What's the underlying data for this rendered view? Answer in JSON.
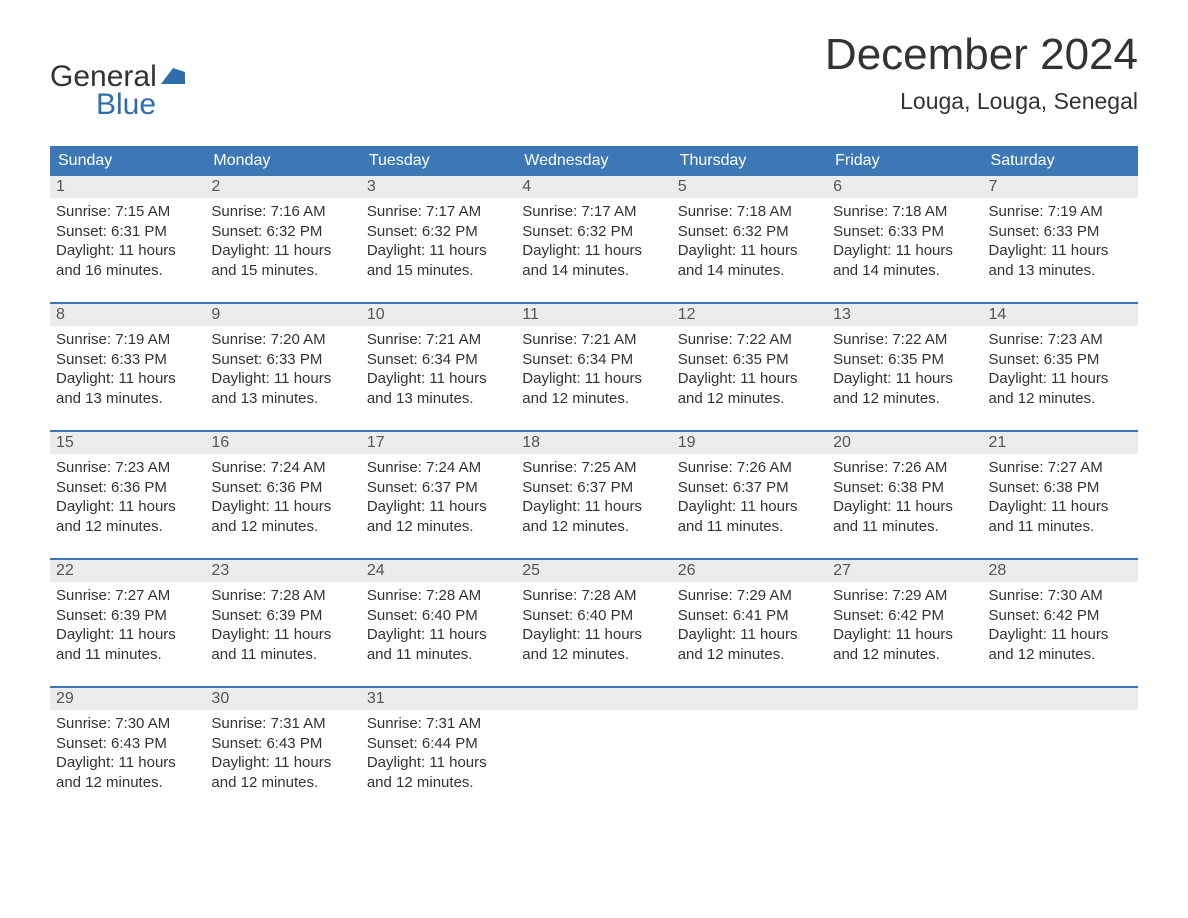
{
  "header": {
    "logo_line1": "General",
    "logo_line2": "Blue",
    "title": "December 2024",
    "subtitle": "Louga, Louga, Senegal"
  },
  "styling": {
    "header_bg": "#3b78b5",
    "header_text": "#ffffff",
    "daynum_bg": "#ececec",
    "week_border": "#3b78b5",
    "body_bg": "#ffffff",
    "text_color": "#333333",
    "logo_blue": "#2e6fab",
    "title_fontsize": 44,
    "subtitle_fontsize": 23,
    "dayheader_fontsize": 16,
    "body_fontsize": 15
  },
  "day_labels": [
    "Sunday",
    "Monday",
    "Tuesday",
    "Wednesday",
    "Thursday",
    "Friday",
    "Saturday"
  ],
  "weeks": [
    [
      {
        "n": "1",
        "sr": "Sunrise: 7:15 AM",
        "ss": "Sunset: 6:31 PM",
        "d1": "Daylight: 11 hours",
        "d2": "and 16 minutes."
      },
      {
        "n": "2",
        "sr": "Sunrise: 7:16 AM",
        "ss": "Sunset: 6:32 PM",
        "d1": "Daylight: 11 hours",
        "d2": "and 15 minutes."
      },
      {
        "n": "3",
        "sr": "Sunrise: 7:17 AM",
        "ss": "Sunset: 6:32 PM",
        "d1": "Daylight: 11 hours",
        "d2": "and 15 minutes."
      },
      {
        "n": "4",
        "sr": "Sunrise: 7:17 AM",
        "ss": "Sunset: 6:32 PM",
        "d1": "Daylight: 11 hours",
        "d2": "and 14 minutes."
      },
      {
        "n": "5",
        "sr": "Sunrise: 7:18 AM",
        "ss": "Sunset: 6:32 PM",
        "d1": "Daylight: 11 hours",
        "d2": "and 14 minutes."
      },
      {
        "n": "6",
        "sr": "Sunrise: 7:18 AM",
        "ss": "Sunset: 6:33 PM",
        "d1": "Daylight: 11 hours",
        "d2": "and 14 minutes."
      },
      {
        "n": "7",
        "sr": "Sunrise: 7:19 AM",
        "ss": "Sunset: 6:33 PM",
        "d1": "Daylight: 11 hours",
        "d2": "and 13 minutes."
      }
    ],
    [
      {
        "n": "8",
        "sr": "Sunrise: 7:19 AM",
        "ss": "Sunset: 6:33 PM",
        "d1": "Daylight: 11 hours",
        "d2": "and 13 minutes."
      },
      {
        "n": "9",
        "sr": "Sunrise: 7:20 AM",
        "ss": "Sunset: 6:33 PM",
        "d1": "Daylight: 11 hours",
        "d2": "and 13 minutes."
      },
      {
        "n": "10",
        "sr": "Sunrise: 7:21 AM",
        "ss": "Sunset: 6:34 PM",
        "d1": "Daylight: 11 hours",
        "d2": "and 13 minutes."
      },
      {
        "n": "11",
        "sr": "Sunrise: 7:21 AM",
        "ss": "Sunset: 6:34 PM",
        "d1": "Daylight: 11 hours",
        "d2": "and 12 minutes."
      },
      {
        "n": "12",
        "sr": "Sunrise: 7:22 AM",
        "ss": "Sunset: 6:35 PM",
        "d1": "Daylight: 11 hours",
        "d2": "and 12 minutes."
      },
      {
        "n": "13",
        "sr": "Sunrise: 7:22 AM",
        "ss": "Sunset: 6:35 PM",
        "d1": "Daylight: 11 hours",
        "d2": "and 12 minutes."
      },
      {
        "n": "14",
        "sr": "Sunrise: 7:23 AM",
        "ss": "Sunset: 6:35 PM",
        "d1": "Daylight: 11 hours",
        "d2": "and 12 minutes."
      }
    ],
    [
      {
        "n": "15",
        "sr": "Sunrise: 7:23 AM",
        "ss": "Sunset: 6:36 PM",
        "d1": "Daylight: 11 hours",
        "d2": "and 12 minutes."
      },
      {
        "n": "16",
        "sr": "Sunrise: 7:24 AM",
        "ss": "Sunset: 6:36 PM",
        "d1": "Daylight: 11 hours",
        "d2": "and 12 minutes."
      },
      {
        "n": "17",
        "sr": "Sunrise: 7:24 AM",
        "ss": "Sunset: 6:37 PM",
        "d1": "Daylight: 11 hours",
        "d2": "and 12 minutes."
      },
      {
        "n": "18",
        "sr": "Sunrise: 7:25 AM",
        "ss": "Sunset: 6:37 PM",
        "d1": "Daylight: 11 hours",
        "d2": "and 12 minutes."
      },
      {
        "n": "19",
        "sr": "Sunrise: 7:26 AM",
        "ss": "Sunset: 6:37 PM",
        "d1": "Daylight: 11 hours",
        "d2": "and 11 minutes."
      },
      {
        "n": "20",
        "sr": "Sunrise: 7:26 AM",
        "ss": "Sunset: 6:38 PM",
        "d1": "Daylight: 11 hours",
        "d2": "and 11 minutes."
      },
      {
        "n": "21",
        "sr": "Sunrise: 7:27 AM",
        "ss": "Sunset: 6:38 PM",
        "d1": "Daylight: 11 hours",
        "d2": "and 11 minutes."
      }
    ],
    [
      {
        "n": "22",
        "sr": "Sunrise: 7:27 AM",
        "ss": "Sunset: 6:39 PM",
        "d1": "Daylight: 11 hours",
        "d2": "and 11 minutes."
      },
      {
        "n": "23",
        "sr": "Sunrise: 7:28 AM",
        "ss": "Sunset: 6:39 PM",
        "d1": "Daylight: 11 hours",
        "d2": "and 11 minutes."
      },
      {
        "n": "24",
        "sr": "Sunrise: 7:28 AM",
        "ss": "Sunset: 6:40 PM",
        "d1": "Daylight: 11 hours",
        "d2": "and 11 minutes."
      },
      {
        "n": "25",
        "sr": "Sunrise: 7:28 AM",
        "ss": "Sunset: 6:40 PM",
        "d1": "Daylight: 11 hours",
        "d2": "and 12 minutes."
      },
      {
        "n": "26",
        "sr": "Sunrise: 7:29 AM",
        "ss": "Sunset: 6:41 PM",
        "d1": "Daylight: 11 hours",
        "d2": "and 12 minutes."
      },
      {
        "n": "27",
        "sr": "Sunrise: 7:29 AM",
        "ss": "Sunset: 6:42 PM",
        "d1": "Daylight: 11 hours",
        "d2": "and 12 minutes."
      },
      {
        "n": "28",
        "sr": "Sunrise: 7:30 AM",
        "ss": "Sunset: 6:42 PM",
        "d1": "Daylight: 11 hours",
        "d2": "and 12 minutes."
      }
    ],
    [
      {
        "n": "29",
        "sr": "Sunrise: 7:30 AM",
        "ss": "Sunset: 6:43 PM",
        "d1": "Daylight: 11 hours",
        "d2": "and 12 minutes."
      },
      {
        "n": "30",
        "sr": "Sunrise: 7:31 AM",
        "ss": "Sunset: 6:43 PM",
        "d1": "Daylight: 11 hours",
        "d2": "and 12 minutes."
      },
      {
        "n": "31",
        "sr": "Sunrise: 7:31 AM",
        "ss": "Sunset: 6:44 PM",
        "d1": "Daylight: 11 hours",
        "d2": "and 12 minutes."
      },
      null,
      null,
      null,
      null
    ]
  ]
}
